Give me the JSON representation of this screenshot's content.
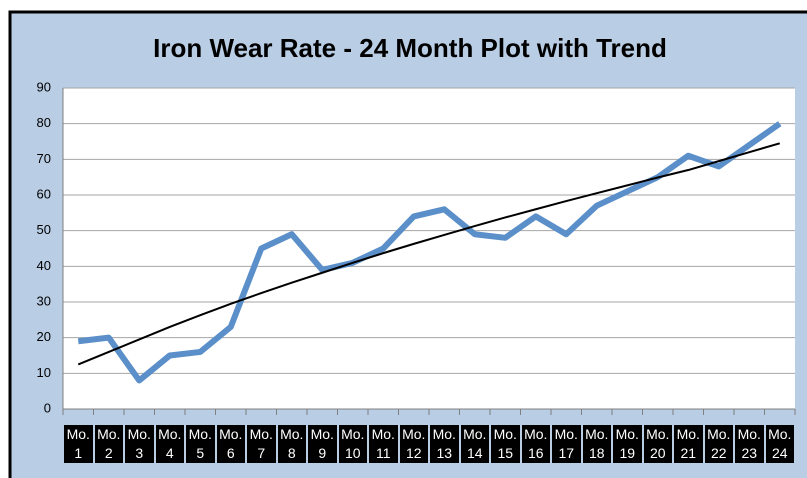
{
  "chart_data": {
    "type": "line",
    "title": "Iron Wear Rate - 24 Month Plot with Trend",
    "categories": [
      "Mo. 1",
      "Mo. 2",
      "Mo. 3",
      "Mo. 4",
      "Mo. 5",
      "Mo. 6",
      "Mo. 7",
      "Mo. 8",
      "Mo. 9",
      "Mo. 10",
      "Mo. 11",
      "Mo. 12",
      "Mo. 13",
      "Mo. 14",
      "Mo. 15",
      "Mo. 16",
      "Mo. 17",
      "Mo. 18",
      "Mo. 19",
      "Mo. 20",
      "Mo. 21",
      "Mo. 22",
      "Mo. 23",
      "Mo. 24"
    ],
    "series": [
      {
        "color": "#5b8fc9",
        "values": [
          19,
          20,
          8,
          15,
          16,
          23,
          45,
          49,
          39,
          41,
          45,
          54,
          56,
          49,
          48,
          54,
          49,
          57,
          61,
          65,
          71,
          68,
          74,
          80
        ]
      },
      {
        "color": "#000000",
        "values": [
          12.5,
          16,
          19.5,
          23,
          26.3,
          29.5,
          32.5,
          35.4,
          38.2,
          41,
          43.7,
          46.3,
          48.8,
          51.3,
          53.7,
          56,
          58.3,
          60.5,
          62.7,
          64.9,
          67,
          69.5,
          72,
          74.5
        ]
      }
    ],
    "ylim": [
      0,
      90
    ],
    "yticks": [
      0,
      10,
      20,
      30,
      40,
      50,
      60,
      70,
      80,
      90
    ],
    "grid": true
  }
}
